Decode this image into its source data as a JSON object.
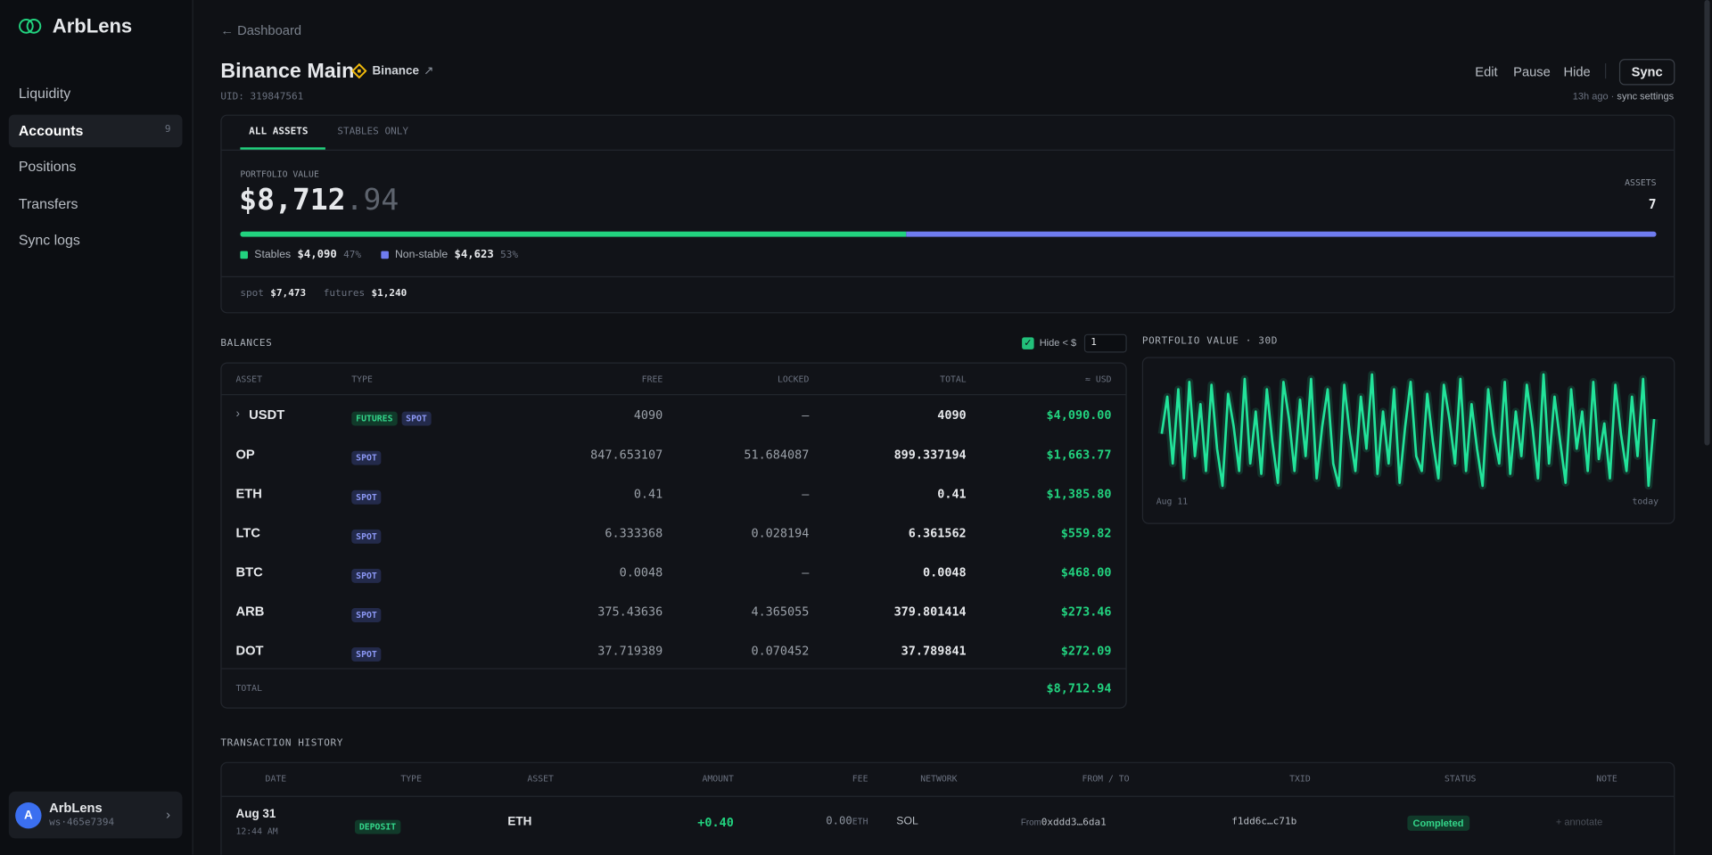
{
  "brand": "ArbLens",
  "nav": [
    {
      "label": "Liquidity"
    },
    {
      "label": "Accounts",
      "badge": 9
    },
    {
      "label": "Positions"
    },
    {
      "label": "Transfers"
    },
    {
      "label": "Sync logs"
    }
  ],
  "user": {
    "avatar": "A",
    "name": "ArbLens",
    "workspace": "ws·465e7394"
  },
  "breadcrumb": "← Dashboard",
  "account": {
    "name": "Binance Main",
    "exchange": "Binance",
    "uid": "UID: 319847561"
  },
  "actions": [
    "Edit",
    "Pause",
    "Hide",
    "Sync"
  ],
  "sync_status": {
    "ago": "13h ago ·",
    "link": "sync settings"
  },
  "tabs": [
    "ALL ASSETS",
    "STABLES ONLY"
  ],
  "portfolio": {
    "label": "PORTFOLIO VALUE",
    "value_main": "$8,712",
    "value_cents": ".94",
    "assets_label": "ASSETS",
    "assets": 7,
    "split": [
      {
        "name": "Stables",
        "value": "$4,090",
        "pct": 47,
        "pct_label": "47%",
        "color": "#22d37f"
      },
      {
        "name": "Non-stable",
        "value": "$4,623",
        "pct": 53,
        "pct_label": "53%",
        "color": "#6f7cf0"
      }
    ],
    "wallets": [
      {
        "name": "spot",
        "value": "$7,473"
      },
      {
        "name": "futures",
        "value": "$1,240"
      }
    ]
  },
  "balances": {
    "title": "BALANCES",
    "hide_label": "Hide < $",
    "hide_threshold": 1,
    "columns": [
      "ASSET",
      "TYPE",
      "FREE",
      "LOCKED",
      "TOTAL",
      "≈ USD"
    ],
    "rows": [
      {
        "asset": "USDT",
        "expand": "›",
        "types": [
          "FUTURES",
          "SPOT"
        ],
        "free": "4090",
        "locked": "—",
        "total": "4090",
        "usd": "$4,090.00"
      },
      {
        "asset": "OP",
        "types": [
          "SPOT"
        ],
        "free": "847.653107",
        "locked": "51.684087",
        "total": "899.337194",
        "usd": "$1,663.77"
      },
      {
        "asset": "ETH",
        "types": [
          "SPOT"
        ],
        "free": "0.41",
        "locked": "—",
        "total": "0.41",
        "usd": "$1,385.80"
      },
      {
        "asset": "LTC",
        "types": [
          "SPOT"
        ],
        "free": "6.333368",
        "locked": "0.028194",
        "total": "6.361562",
        "usd": "$559.82"
      },
      {
        "asset": "BTC",
        "types": [
          "SPOT"
        ],
        "free": "0.0048",
        "locked": "—",
        "total": "0.0048",
        "usd": "$468.00"
      },
      {
        "asset": "ARB",
        "types": [
          "SPOT"
        ],
        "free": "375.43636",
        "locked": "4.365055",
        "total": "379.801414",
        "usd": "$273.46"
      },
      {
        "asset": "DOT",
        "types": [
          "SPOT"
        ],
        "free": "37.719389",
        "locked": "0.070452",
        "total": "37.789841",
        "usd": "$272.09"
      }
    ],
    "total_label": "TOTAL",
    "total": "$8,712.94"
  },
  "chart": {
    "title": "PORTFOLIO VALUE · 30D",
    "start": "Aug 11",
    "end": "today",
    "color": "#22e39a",
    "values": [
      55,
      80,
      35,
      85,
      25,
      90,
      40,
      75,
      30,
      88,
      45,
      20,
      82,
      60,
      30,
      92,
      35,
      70,
      28,
      85,
      50,
      22,
      90,
      65,
      30,
      78,
      40,
      92,
      25,
      60,
      85,
      35,
      20,
      88,
      55,
      30,
      80,
      45,
      95,
      28,
      70,
      35,
      85,
      22,
      60,
      90,
      40,
      30,
      82,
      50,
      25,
      88,
      65,
      35,
      92,
      30,
      75,
      45,
      20,
      85,
      55,
      35,
      90,
      28,
      70,
      40,
      88,
      60,
      25,
      95,
      35,
      80,
      50,
      22,
      85,
      45,
      70,
      30,
      90,
      38,
      62,
      25,
      88,
      55,
      30,
      80,
      40,
      92,
      20,
      65
    ]
  },
  "transactions": {
    "title": "TRANSACTION HISTORY",
    "columns": [
      "DATE",
      "TYPE",
      "ASSET",
      "AMOUNT",
      "FEE",
      "NETWORK",
      "FROM / TO",
      "TXID",
      "STATUS",
      "NOTE"
    ],
    "rows": [
      {
        "date": "Aug 31",
        "time": "12:44 AM",
        "type": "DEPOSIT",
        "asset": "ETH",
        "amount": "+0.40",
        "fee": "0.00",
        "fee_unit": "ETH",
        "network": "SOL",
        "from_label": "From",
        "from": "0xddd3…6da1",
        "txid": "f1dd6c…c71b",
        "status": "Completed",
        "note": "+ annotate"
      }
    ]
  }
}
